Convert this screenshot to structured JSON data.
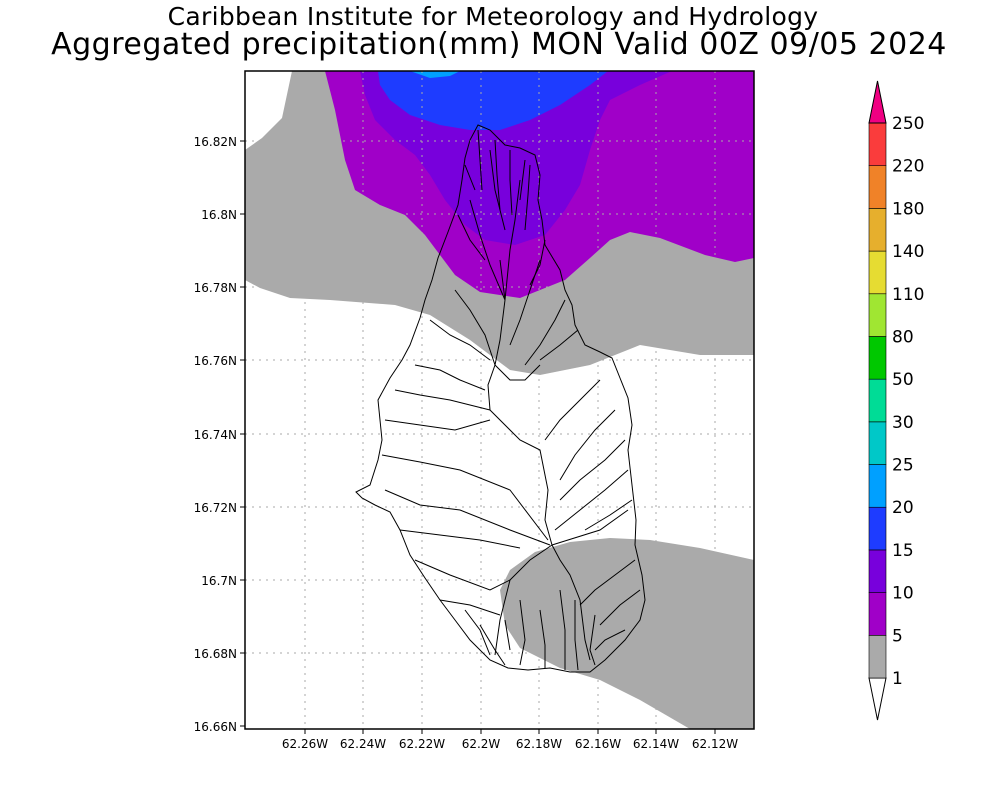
{
  "title_line1": "Caribbean Institute for Meteorology and Hydrology",
  "title_line2": "Aggregated precipitation(mm) MON Valid 00Z 09/05 2024",
  "lat_labels": [
    "16.82N",
    "16.8N",
    "16.78N",
    "16.76N",
    "16.74N",
    "16.72N",
    "16.7N",
    "16.68N",
    "16.66N"
  ],
  "lon_labels": [
    "62.26W",
    "62.24W",
    "62.22W",
    "62.2W",
    "62.18W",
    "62.16W",
    "62.14W",
    "62.12W"
  ],
  "colorbar": {
    "labels": [
      "1",
      "5",
      "10",
      "15",
      "20",
      "25",
      "30",
      "50",
      "80",
      "110",
      "140",
      "180",
      "220",
      "250"
    ],
    "colors": [
      "#aaaaaa",
      "#a000c8",
      "#7800dc",
      "#1e3cff",
      "#00a0ff",
      "#00c8c8",
      "#00dc96",
      "#00c800",
      "#a0e632",
      "#e6dc32",
      "#e6af2d",
      "#f08228",
      "#fa3c3c",
      "#f00082"
    ]
  },
  "shading_colors": {
    "light": "#aaaaaa",
    "purple5": "#a000c8",
    "purple10": "#7800dc",
    "blue15": "#1e3cff",
    "blue20": "#00a0ff"
  }
}
